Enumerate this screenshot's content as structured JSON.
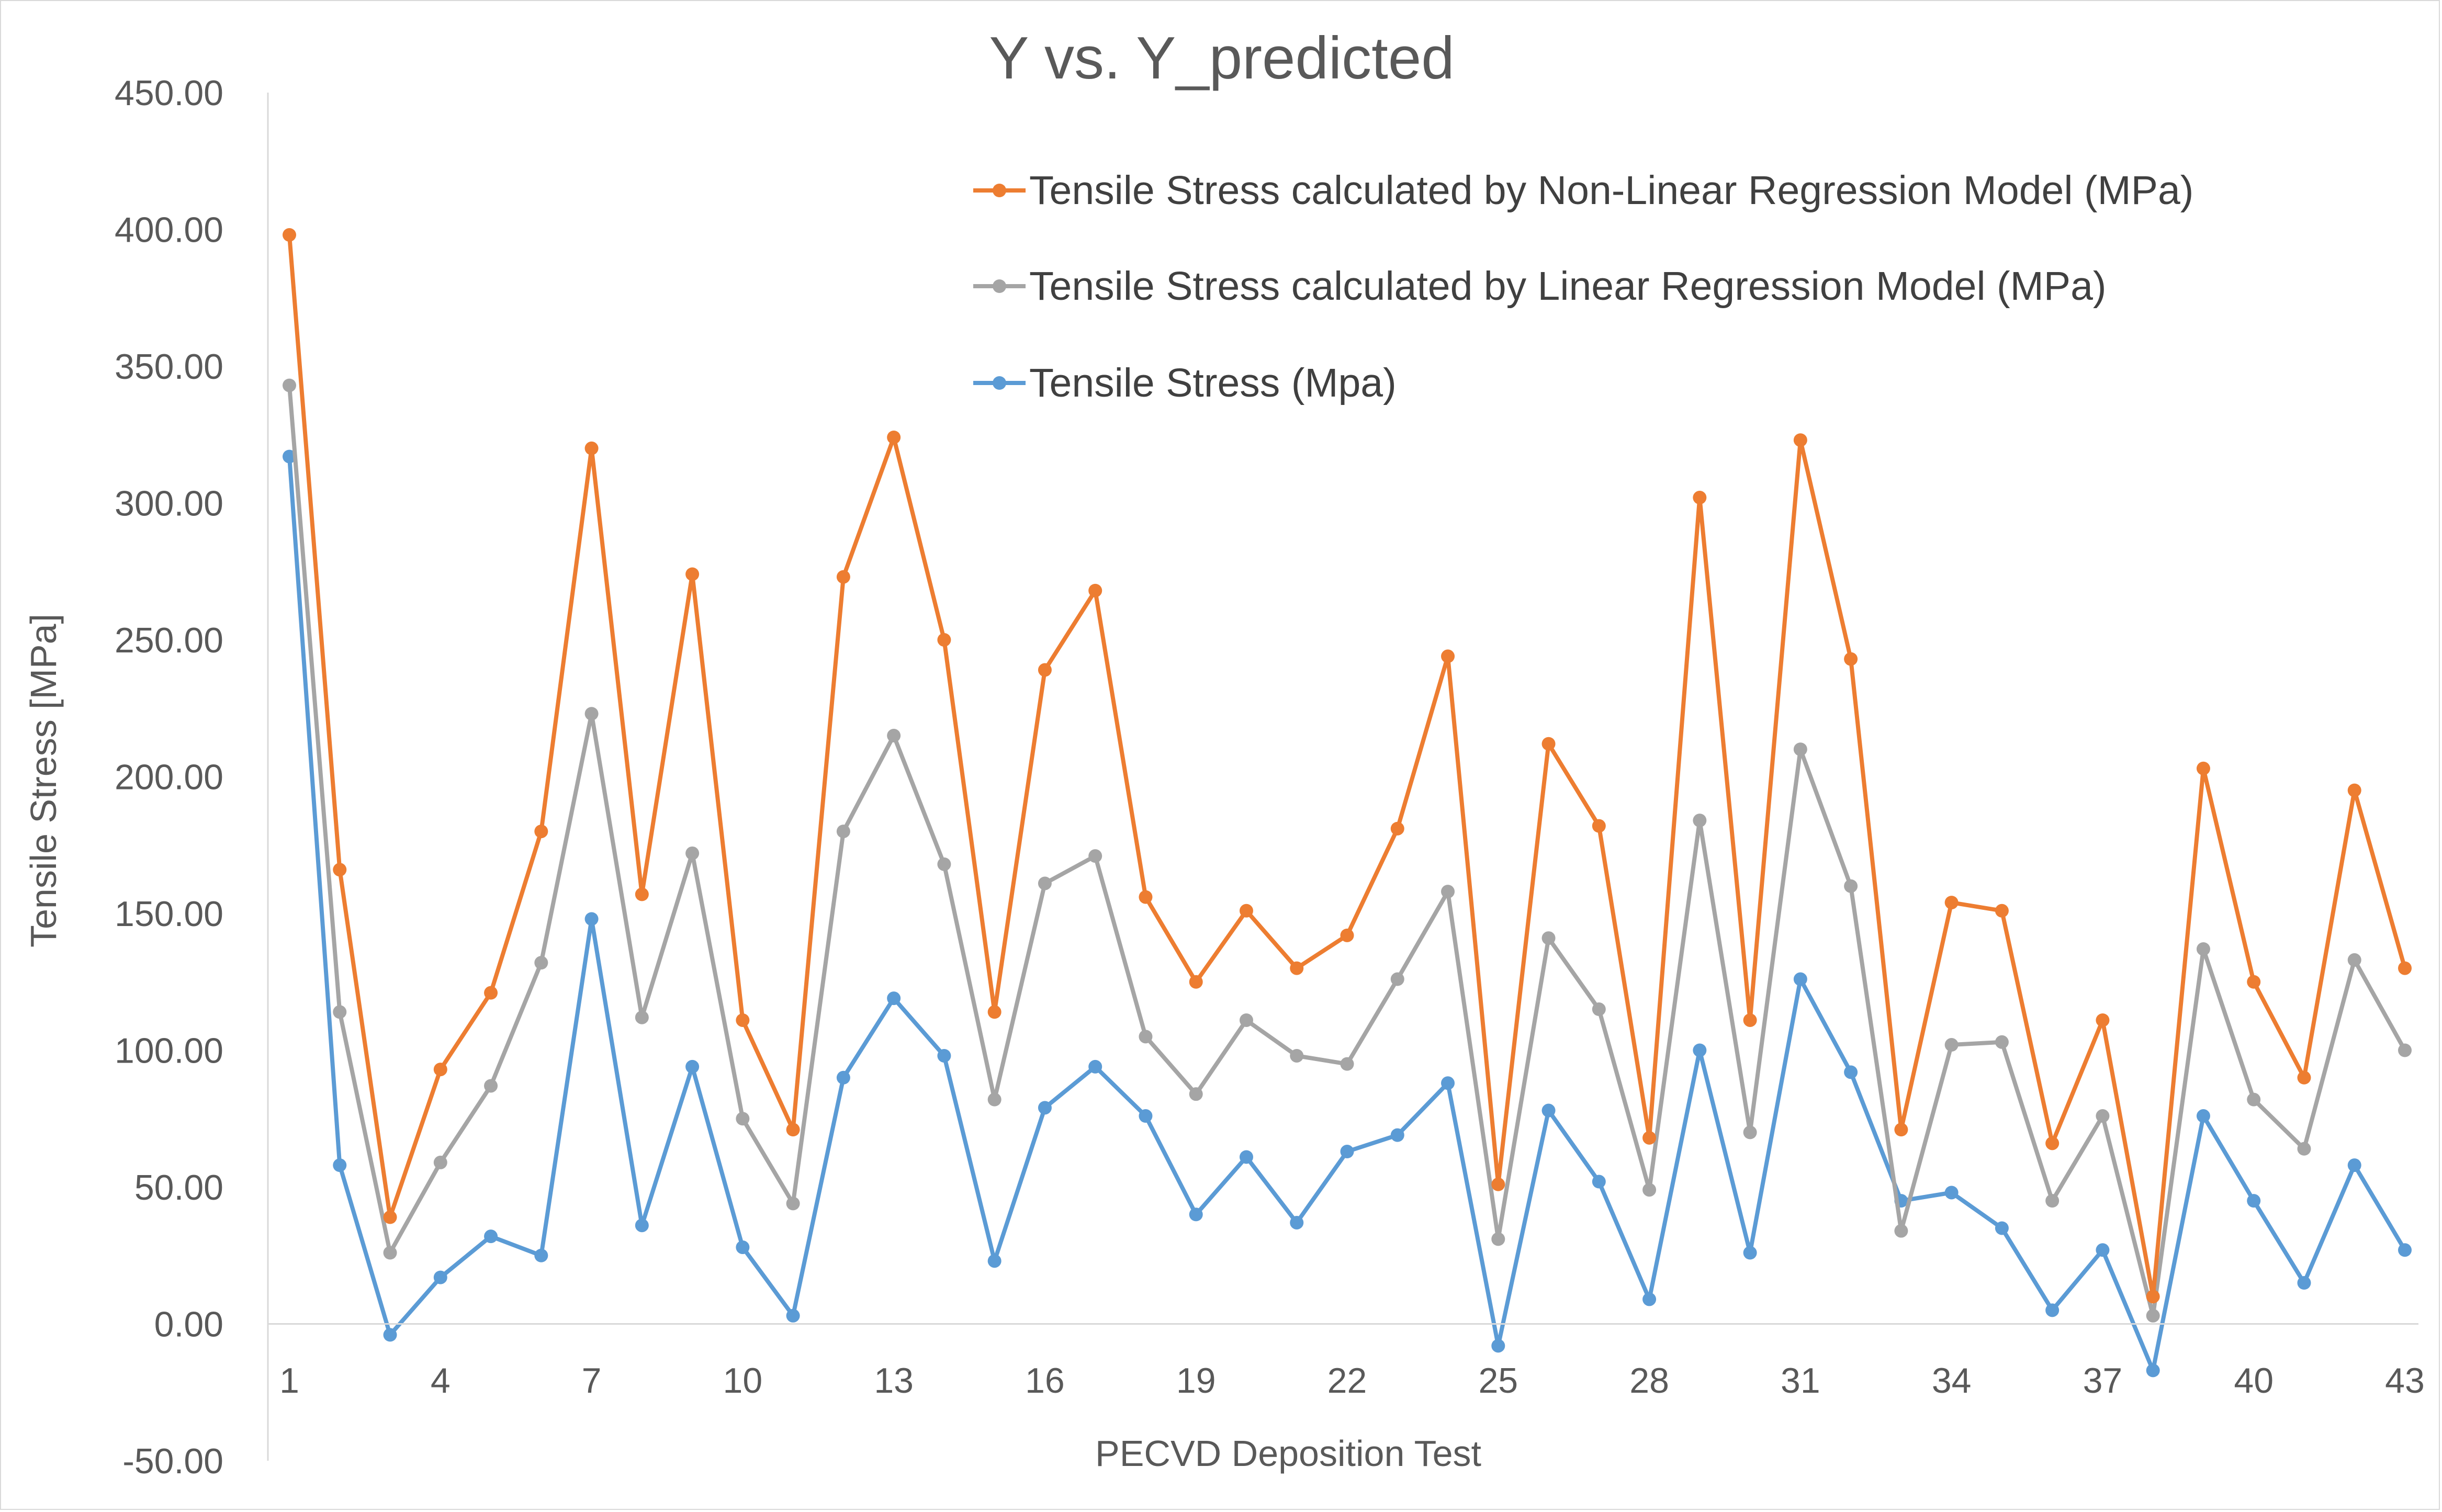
{
  "chart_data": {
    "type": "line",
    "title": "Y vs. Y_predicted",
    "xlabel": "PECVD Deposition Test",
    "ylabel": "Tensile Stress [MPa]",
    "ylim": [
      -50,
      450
    ],
    "ytick_step": 50,
    "yticks": [
      "450.00",
      "400.00",
      "350.00",
      "300.00",
      "250.00",
      "200.00",
      "150.00",
      "100.00",
      "50.00",
      "0.00",
      "-50.00"
    ],
    "xticks": [
      "1",
      "4",
      "7",
      "10",
      "13",
      "16",
      "19",
      "22",
      "25",
      "28",
      "31",
      "34",
      "37",
      "40",
      "43"
    ],
    "grid": false,
    "legend_position": "top-right",
    "x": [
      1,
      2,
      3,
      4,
      5,
      6,
      7,
      8,
      9,
      10,
      11,
      12,
      13,
      14,
      15,
      16,
      17,
      18,
      19,
      20,
      21,
      22,
      23,
      24,
      25,
      26,
      27,
      28,
      29,
      30,
      31,
      32,
      33,
      34,
      35,
      36,
      37,
      38,
      39,
      40,
      41,
      42,
      43
    ],
    "series": [
      {
        "name": "Tensile Stress calculated by Non-Linear Regression Model (MPa)",
        "color": "#ed7d31",
        "values": [
          398,
          166,
          39,
          93,
          121,
          180,
          320,
          157,
          274,
          111,
          71,
          273,
          324,
          250,
          114,
          239,
          268,
          156,
          125,
          151,
          130,
          142,
          181,
          244,
          51,
          212,
          182,
          68,
          302,
          111,
          323,
          243,
          71,
          154,
          151,
          66,
          111,
          10,
          203,
          125,
          90,
          195,
          130
        ]
      },
      {
        "name": "Tensile Stress calculated by Linear Regression Model (MPa)",
        "color": "#a5a5a5",
        "values": [
          343,
          114,
          26,
          59,
          87,
          132,
          223,
          112,
          172,
          75,
          44,
          180,
          215,
          168,
          82,
          161,
          171,
          105,
          84,
          111,
          98,
          95,
          126,
          158,
          31,
          141,
          115,
          49,
          184,
          70,
          210,
          160,
          34,
          102,
          103,
          45,
          76,
          3,
          137,
          82,
          64,
          133,
          100
        ]
      },
      {
        "name": "Tensile Stress (Mpa)",
        "color": "#5b9bd5",
        "values": [
          317,
          58,
          -4,
          17,
          32,
          25,
          148,
          36,
          94,
          28,
          3,
          90,
          119,
          98,
          23,
          79,
          94,
          76,
          40,
          61,
          37,
          63,
          69,
          88,
          -8,
          78,
          52,
          9,
          100,
          26,
          126,
          92,
          45,
          48,
          35,
          5,
          27,
          -17,
          76,
          45,
          15,
          58,
          27
        ]
      }
    ]
  }
}
